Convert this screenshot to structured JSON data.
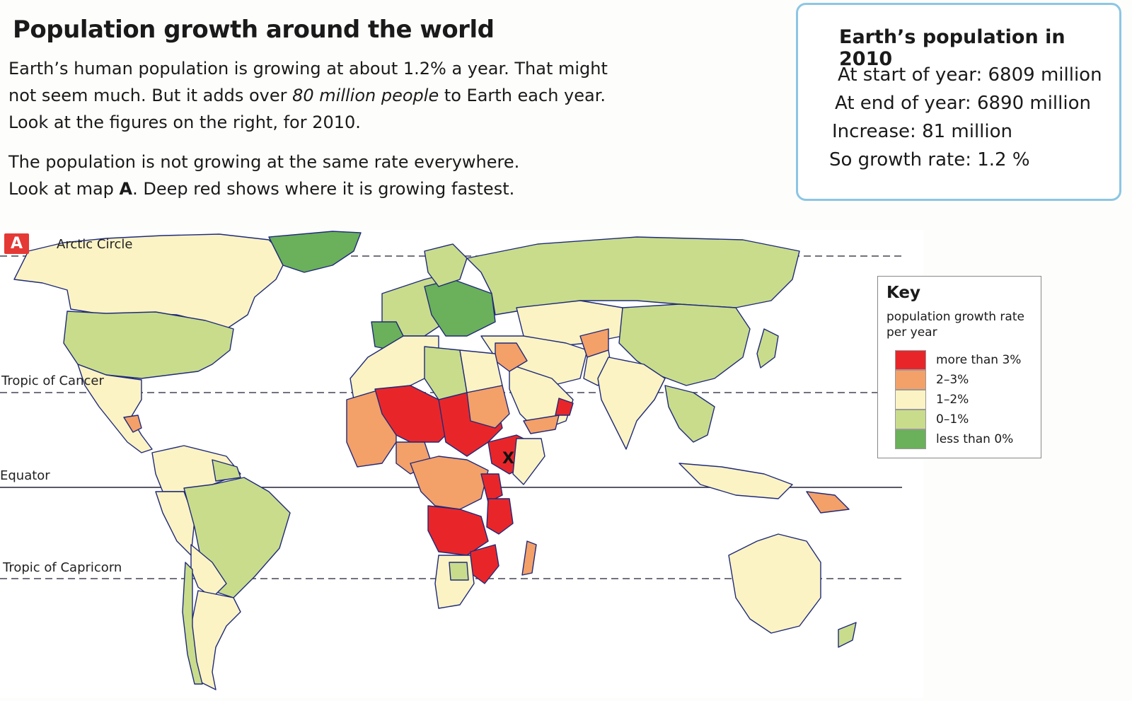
{
  "heading": "Population growth around the world",
  "intro": {
    "line1": "Earth’s human population is growing at about 1.2% a year. That might",
    "line2_pre": "not seem much. But it adds over ",
    "line2_em": "80 million people",
    "line2_post": " to Earth each year.",
    "line3": "Look at the figures on the right, for 2010."
  },
  "note": {
    "line1": "The population is not growing at the same rate everywhere.",
    "line2_pre": "Look at map ",
    "line2_strong": "A",
    "line2_post": ". Deep red shows where it is growing fastest."
  },
  "stats": {
    "title": "Earth’s population in 2010",
    "start_label": "At start of year:",
    "start_value": "6809 million",
    "end_label": "At end of year:",
    "end_value": "6890 million",
    "increase_label": "Increase:",
    "increase_value": "81 million",
    "rate_label": "So growth rate:",
    "rate_value": "1.2 %"
  },
  "map": {
    "label": "A",
    "arctic": "Arctic Circle",
    "cancer": "Tropic of Cancer",
    "equator": "Equator",
    "capricorn": "Tropic of Capricorn",
    "marker": "X",
    "colors": {
      "ocean": "#ffffff",
      "gt3": "#e8262a",
      "r2_3": "#f4a069",
      "r1_2": "#fbf3c4",
      "r0_1": "#c9dc8c",
      "lt0": "#6bb05a",
      "border": "#9c2a2a",
      "coast": "#1f2a7a"
    }
  },
  "key": {
    "title": "Key",
    "subtitle": "population growth rate per year",
    "items": [
      {
        "label": "more than 3%",
        "color": "#e8262a"
      },
      {
        "label": "2–3%",
        "color": "#f4a069"
      },
      {
        "label": "1–2%",
        "color": "#fbf3c4"
      },
      {
        "label": "0–1%",
        "color": "#c9dc8c"
      },
      {
        "label": "less than 0%",
        "color": "#6bb05a"
      }
    ]
  }
}
